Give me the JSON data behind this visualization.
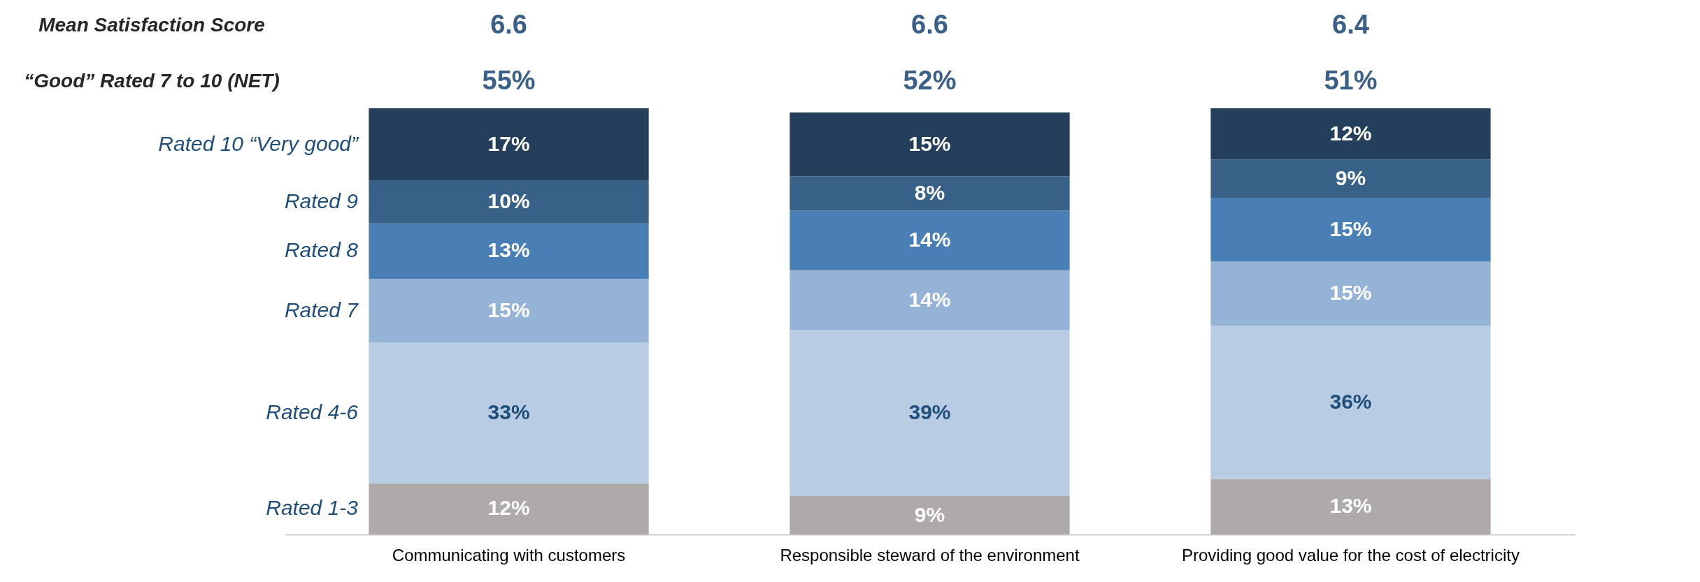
{
  "chart_data": {
    "type": "bar",
    "stacked": true,
    "data_labels": true,
    "categories": [
      "Communicating with customers",
      "Responsible steward of the environment",
      "Providing good value for the cost of electricity"
    ],
    "series": [
      {
        "name": "Rated 1-3",
        "color": "#aeaaaa",
        "values": [
          12,
          9,
          13
        ],
        "value_labels": [
          "12%",
          "9%",
          "13%"
        ]
      },
      {
        "name": "Rated 4-6",
        "color": "#b8cce4",
        "values": [
          33,
          39,
          36
        ],
        "value_labels": [
          "33%",
          "39%",
          "36%"
        ]
      },
      {
        "name": "Rated 7",
        "color": "#95b3d7",
        "values": [
          15,
          14,
          15
        ],
        "value_labels": [
          "15%",
          "14%",
          "15%"
        ]
      },
      {
        "name": "Rated 8",
        "color": "#4a7fb5",
        "values": [
          13,
          14,
          15
        ],
        "value_labels": [
          "13%",
          "14%",
          "15%"
        ]
      },
      {
        "name": "Rated 9",
        "color": "#376186",
        "values": [
          10,
          8,
          9
        ],
        "value_labels": [
          "10%",
          "8%",
          "9%"
        ]
      },
      {
        "name": "Rated 10 “Very good”",
        "color": "#243f5c",
        "values": [
          17,
          15,
          12
        ],
        "value_labels": [
          "17%",
          "15%",
          "12%"
        ]
      }
    ],
    "annotations": [
      "Mean Satisfaction Score",
      "6.6",
      "6.6",
      "6.4",
      "“Good” Rated 7 to 10 (NET)",
      "55%",
      "52%",
      "51%"
    ]
  }
}
